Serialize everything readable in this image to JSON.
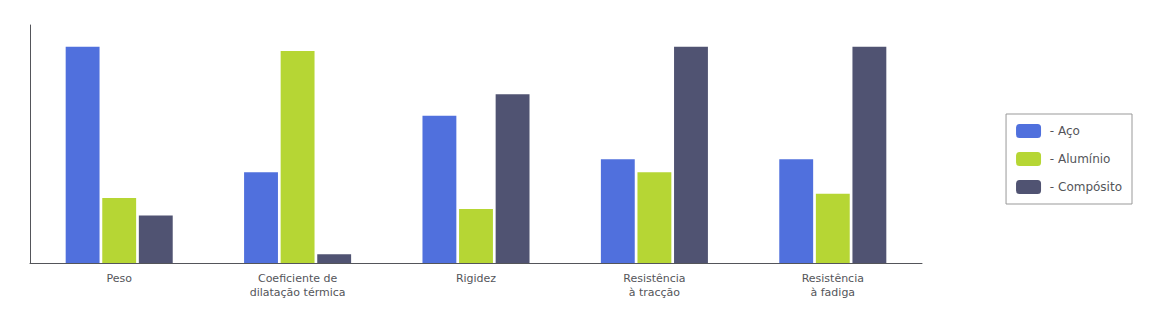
{
  "chart_data": {
    "type": "bar",
    "categories": [
      "Peso",
      "Coeficiente de\ndilatação térmica",
      "Rigidez",
      "Resistência\nà tracção",
      "Resistência\nà fadiga"
    ],
    "series": [
      {
        "name": " - Aço",
        "values": [
          10,
          4.2,
          6.8,
          4.8,
          4.8
        ]
      },
      {
        "name": " - Alumínio",
        "values": [
          3.0,
          9.8,
          2.5,
          4.2,
          3.2
        ]
      },
      {
        "name": " - Compósito",
        "values": [
          2.2,
          0.4,
          7.8,
          10,
          10
        ]
      }
    ],
    "ylim": [
      0,
      11
    ],
    "grid": false,
    "legend": "right",
    "tick_labels": "x"
  }
}
